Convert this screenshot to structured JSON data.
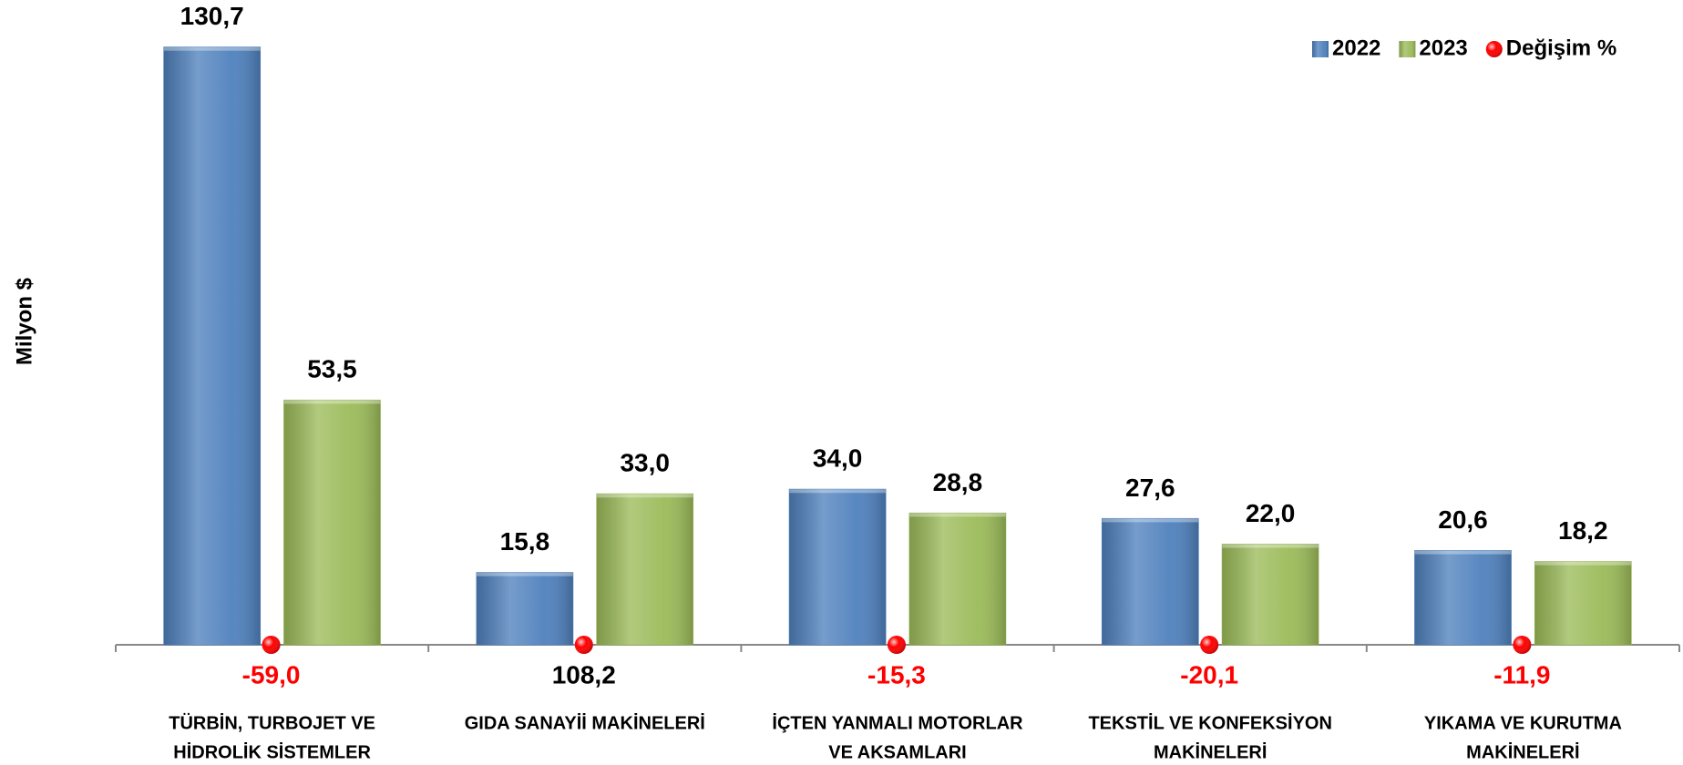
{
  "chart_data": {
    "type": "bar",
    "y_label": "Milyon $",
    "categories": [
      [
        "TÜRBİN, TURBOJET VE",
        "HİDROLİK SİSTEMLER"
      ],
      [
        "GIDA SANAYİİ MAKİNELERİ"
      ],
      [
        "İÇTEN YANMALI MOTORLAR",
        "VE AKSAMLARI"
      ],
      [
        "TEKSTİL VE KONFEKSİYON",
        "MAKİNELERİ"
      ],
      [
        "YIKAMA VE KURUTMA",
        "MAKİNELERİ"
      ]
    ],
    "ylim": [
      0,
      140
    ],
    "legend": "top-right",
    "series": [
      {
        "name": "2022",
        "color": "#4f81bd",
        "values": [
          130.7,
          15.8,
          34.0,
          27.6,
          20.6
        ],
        "value_labels": [
          "130,7",
          "15,8",
          "34,0",
          "27,6",
          "20,6"
        ]
      },
      {
        "name": "2023",
        "color": "#9bbb59",
        "values": [
          53.5,
          33.0,
          28.8,
          22.0,
          18.2
        ],
        "value_labels": [
          "53,5",
          "33,0",
          "28,8",
          "22,0",
          "18,2"
        ]
      },
      {
        "name": "Değişim %",
        "type": "marker",
        "color": "#ff0000",
        "values": [
          -59.0,
          108.2,
          -15.3,
          -20.1,
          -11.9
        ],
        "value_labels": [
          "-59,0",
          "108,2",
          "-15,3",
          "-20,1",
          "-11,9"
        ]
      }
    ]
  }
}
